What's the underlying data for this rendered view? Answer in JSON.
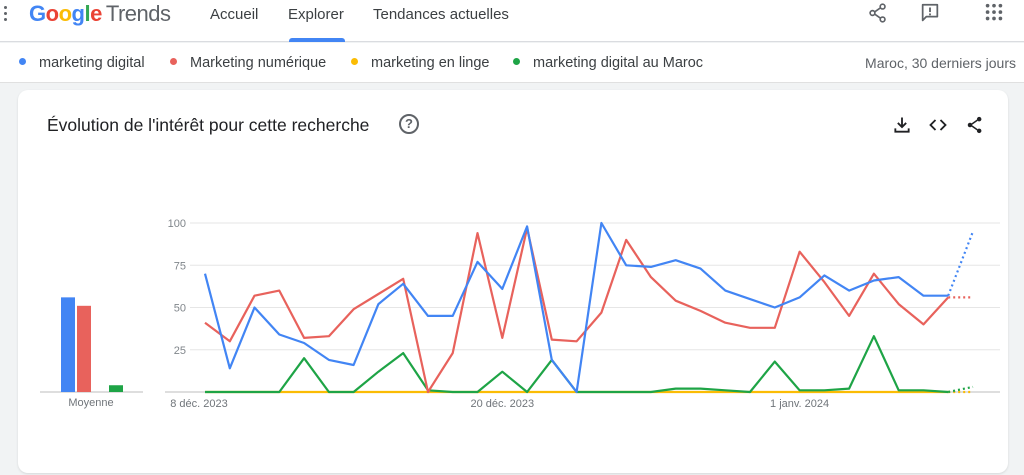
{
  "header": {
    "logo_brand": "Google",
    "logo_product": "Trends",
    "nav": [
      "Accueil",
      "Explorer",
      "Tendances actuelles"
    ],
    "active_nav": "Explorer",
    "icons": [
      "share-icon",
      "feedback-icon",
      "apps-grid-icon"
    ]
  },
  "terms": [
    {
      "label": "marketing digital",
      "color": "#4285f4"
    },
    {
      "label": "Marketing numérique",
      "color": "#e8625c"
    },
    {
      "label": "marketing en linge",
      "color": "#fbbc04"
    },
    {
      "label": "marketing digital au Maroc",
      "color": "#1ea446"
    }
  ],
  "region_time": "Maroc, 30 derniers jours",
  "card": {
    "title": "Évolution de l'intérêt pour cette recherche",
    "help_icon": "?",
    "actions": [
      "download-icon",
      "embed-icon",
      "share-icon"
    ]
  },
  "chart_data": {
    "type": "line",
    "title": "Évolution de l'intérêt pour cette recherche",
    "y_ticks": [
      "25",
      "50",
      "75",
      "100"
    ],
    "ylim": [
      0,
      100
    ],
    "x_ticks": [
      "8 déc. 2023",
      "20 déc. 2023",
      "1 janv. 2024"
    ],
    "x_tick_index": [
      0,
      12,
      24
    ],
    "grid": true,
    "average_label": "Moyenne",
    "averages": [
      56,
      51,
      0,
      4
    ],
    "partial_last_point_dotted": true,
    "series": [
      {
        "name": "marketing digital",
        "color": "#4285f4",
        "values": [
          70,
          14,
          50,
          34,
          29,
          19,
          16,
          52,
          64,
          45,
          45,
          77,
          61,
          98,
          19,
          0,
          100,
          75,
          74,
          78,
          73,
          60,
          55,
          50,
          56,
          69,
          60,
          66,
          68,
          57,
          57,
          95
        ]
      },
      {
        "name": "Marketing numérique",
        "color": "#e8625c",
        "values": [
          41,
          30,
          57,
          60,
          32,
          33,
          49,
          58,
          67,
          0,
          23,
          94,
          32,
          97,
          31,
          30,
          47,
          90,
          68,
          54,
          48,
          41,
          38,
          38,
          83,
          65,
          45,
          70,
          52,
          40,
          56,
          56
        ]
      },
      {
        "name": "marketing en linge",
        "color": "#fbbc04",
        "values": [
          0,
          0,
          0,
          0,
          0,
          0,
          0,
          0,
          0,
          0,
          0,
          0,
          0,
          0,
          0,
          0,
          0,
          0,
          0,
          0,
          0,
          0,
          0,
          0,
          0,
          0,
          0,
          0,
          0,
          0,
          0,
          0
        ]
      },
      {
        "name": "marketing digital au Maroc",
        "color": "#1ea446",
        "values": [
          0,
          0,
          0,
          0,
          20,
          0,
          0,
          12,
          23,
          1,
          0,
          0,
          12,
          0,
          19,
          0,
          0,
          0,
          0,
          2,
          2,
          1,
          0,
          18,
          1,
          1,
          2,
          33,
          1,
          1,
          0,
          3
        ]
      }
    ]
  }
}
